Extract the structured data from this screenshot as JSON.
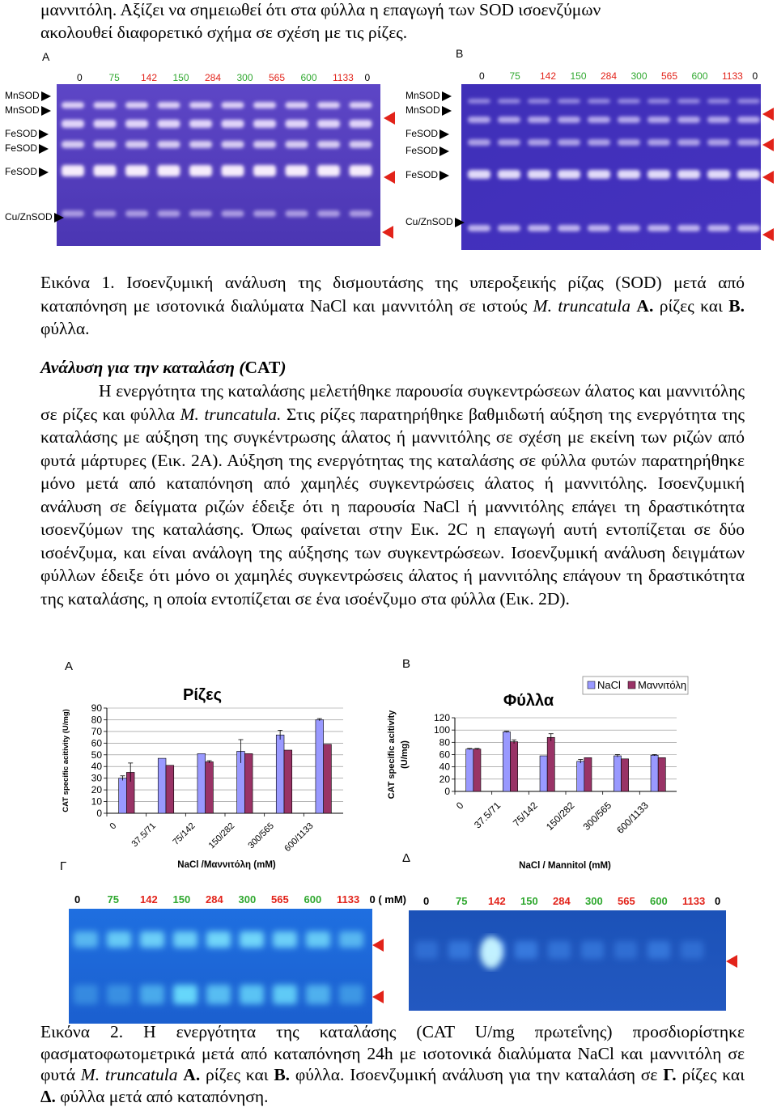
{
  "top_text": {
    "line1": "μαννιτόλη. Αξίζει να σημειωθεί ότι στα φύλλα η επαγωγή των SOD ισοενζύμων",
    "line2": "ακολουθεί διαφορετικό σχήμα σε σχέση με τις ρίζες."
  },
  "figure1": {
    "panel_a_label": "A",
    "panel_b_label": "B",
    "lanes": [
      "0",
      "75",
      "142",
      "150",
      "284",
      "300",
      "565",
      "600",
      "1133",
      "0"
    ],
    "lane_colors": [
      "#000000",
      "#2fa82f",
      "#e2231a",
      "#2fa82f",
      "#e2231a",
      "#2fa82f",
      "#e2231a",
      "#2fa82f",
      "#e2231a",
      "#000000"
    ],
    "band_labels": [
      "MnSOD",
      "MnSOD",
      "FeSOD",
      "FeSOD",
      "FeSOD",
      "Cu/ZnSOD"
    ],
    "caption_prefix": "Εικόνα 1.",
    "caption_text": " Ισοενζυμική ανάλυση της δισμουτάσης της υπεροξειкής ρίζας (SOD) μετά από καταπόνηση με ισοτονικά διαλύματα NaCl και μαννιτόλη σε ιστούς ",
    "caption_species": "M. truncatula",
    "caption_a": "A.",
    "caption_a_text": " ρίζες και ",
    "caption_b": "B.",
    "caption_b_text": " φύλλα."
  },
  "section": {
    "heading_italic": "Ανάλυση για την καταλάση (",
    "heading_normal": "CAT",
    "heading_end": ")",
    "p1": "Η ενεργότητα της καταλάσης μελετήθηκε παρουσία συγκεντρώσεων άλατος και μαννιτόλης σε ρίζες και φύλλα ",
    "p1_species": "M. truncatula.",
    "p1_rest": " Στις ρίζες παρατηρήθηκε βαθμιδωτή αύξηση της ενεργότητα της καταλάσης με αύξηση της συγκέντρωσης άλατος ή μαννιτόλης σε σχέση με εκείνη των ριζών από φυτά μάρτυρες (Εικ. 2Α). Αύξηση της ενεργότητας της καταλάσης σε φύλλα φυτών παρατηρήθηκε μόνο μετά από καταπόνηση από χαμηλές συγκεντρώσεις άλατος ή μαννιτόλης. Ισοενζυμική ανάλυση σε δείγματα ριζών έδειξε ότι η παρουσία NaCl ή μαννιτόλης επάγει τη δραστικότητα ισοενζύμων της καταλάσης. Όπως φαίνεται στην Εικ. 2C η επαγωγή αυτή εντοπίζεται σε δύο ισοένζυμα, και είναι ανάλογη της αύξησης των συγκεντρώσεων. Ισοενζυμική ανάλυση δειγμάτων φύλλων έδειξε ότι μόνο οι χαμηλές συγκεντρώσεις άλατος ή μαννιτόλης επάγουν τη δραστικότητα της καταλάσης, η οποία εντοπίζεται σε ένα ισοένζυμο στα φύλλα (Εικ. 2D)."
  },
  "figure2": {
    "panel_a_label": "A",
    "panel_b_label": "B",
    "panel_c_label": "Γ",
    "panel_d_label": "Δ",
    "gel_lanes_left": [
      "0",
      "75",
      "142",
      "150",
      "284",
      "300",
      "565",
      "600",
      "1133",
      "0 ( mM)"
    ],
    "gel_lanes_right": [
      "0",
      "75",
      "142",
      "150",
      "284",
      "300",
      "565",
      "600",
      "1133",
      "0"
    ],
    "caption_prefix": "Εικόνα 2.",
    "caption_text": " Η ενεργότητα της καταλάσης (CAT U/mg πρωτεΐνης) προσδιορίστηκε φασματοφωτομετρικά μετά από καταπόνηση 24h με ισοτονικά διαλύματα NaCl και μαννιτόλη σε φυτά ",
    "caption_species": "M. truncatula",
    "caption_a": "A.",
    "caption_a_text": " ρίζες και ",
    "caption_b": "B.",
    "caption_b_text": " φύλλα. Ισοενζυμική ανάλυση για την καταλάση σε ",
    "caption_c": "Γ.",
    "caption_c_text": " ρίζες και ",
    "caption_d": "Δ.",
    "caption_d_text": " φύλλα μετά από καταπόνηση."
  },
  "chart_data": [
    {
      "type": "bar",
      "title": "Ρίζες",
      "ylabel": "CAT specific acitivity (U/mg)",
      "xlabel": "NaCl /Μαννιτόλη (mM)",
      "categories": [
        "0",
        "37.5/71",
        "75/142",
        "150/282",
        "300/565",
        "600/1133"
      ],
      "ylim": [
        0,
        90
      ],
      "yticks": [
        0,
        10,
        20,
        30,
        40,
        50,
        60,
        70,
        80,
        90
      ],
      "series": [
        {
          "name": "NaCl",
          "color": "#9999ff",
          "values": [
            30,
            47,
            51,
            53,
            67,
            80
          ],
          "errors": [
            2,
            0,
            0,
            10,
            4,
            1
          ]
        },
        {
          "name": "Μαννιτόλη",
          "color": "#993366",
          "values": [
            35,
            41,
            44,
            51,
            54,
            59
          ],
          "errors": [
            8,
            0,
            1,
            0,
            0,
            0
          ]
        }
      ]
    },
    {
      "type": "bar",
      "title": "Φύλλα",
      "ylabel": "CAT specific acitivity (U/mg)",
      "xlabel": "NaCl / Mannitol (mM)",
      "categories": [
        "0",
        "37.5/71",
        "75/142",
        "150/282",
        "300/565",
        "600/1133"
      ],
      "ylim": [
        0,
        120
      ],
      "yticks": [
        0,
        20,
        40,
        60,
        80,
        100,
        120
      ],
      "legend": [
        "NaCl",
        "Μαννιτόλη"
      ],
      "series": [
        {
          "name": "NaCl",
          "color": "#9999ff",
          "values": [
            69,
            97,
            58,
            49,
            58,
            59
          ],
          "errors": [
            1,
            1,
            0,
            3,
            2,
            1
          ]
        },
        {
          "name": "Μαννιτόλη",
          "color": "#993366",
          "values": [
            69,
            81,
            88,
            55,
            53,
            55
          ],
          "errors": [
            1,
            3,
            6,
            0,
            0,
            0
          ]
        }
      ]
    }
  ]
}
